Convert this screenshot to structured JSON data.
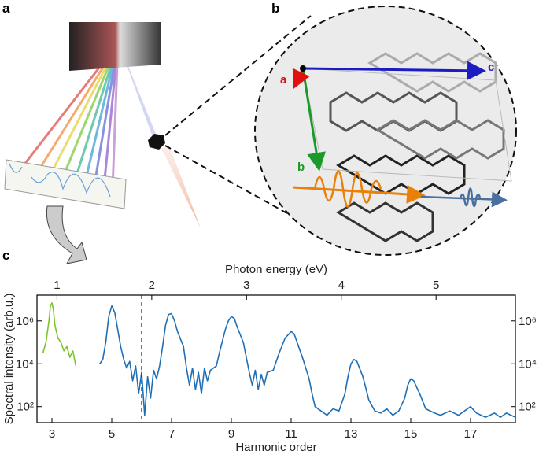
{
  "panel_labels": [
    "a",
    "b",
    "c"
  ],
  "crystal_axes": [
    "a",
    "b",
    "c"
  ],
  "chart_data": {
    "type": "line",
    "xlabel": "Harmonic order",
    "ylabel": "Spectral intensity (arb.u.)",
    "x2label": "Photon energy (eV)",
    "xlim": [
      2.5,
      18.5
    ],
    "xticks": [
      3,
      5,
      7,
      9,
      11,
      13,
      15,
      17
    ],
    "x2lim": [
      0.789,
      5.837
    ],
    "x2ticks": [
      1,
      2,
      3,
      4,
      5
    ],
    "ylim": [
      18,
      16000000
    ],
    "log_y": true,
    "yticks": [
      {
        "value": 100,
        "label": "10²"
      },
      {
        "value": 10000,
        "label": "10⁴"
      },
      {
        "value": 1000000,
        "label": "10⁶"
      }
    ],
    "vline": 6,
    "series": [
      {
        "color": "#7dc42a",
        "x": [
          2.7,
          2.8,
          2.9,
          2.95,
          3.0,
          3.05,
          3.1,
          3.2,
          3.3,
          3.4,
          3.5,
          3.6,
          3.7,
          3.8
        ],
        "values": [
          32000,
          100000,
          1000000,
          5000000,
          7000000,
          3200000,
          630000,
          160000,
          100000,
          40000,
          63000,
          20000,
          40000,
          7900
        ]
      },
      {
        "color": "#1f6fb5",
        "x": [
          4.6,
          4.7,
          4.8,
          4.9,
          5.0,
          5.1,
          5.2,
          5.3,
          5.4,
          5.5,
          5.6,
          5.7,
          5.8,
          5.9,
          6.0,
          6.1,
          6.2,
          6.3,
          6.4,
          6.5,
          6.6,
          6.7,
          6.8,
          6.9,
          7.0,
          7.1,
          7.2,
          7.4,
          7.5,
          7.6,
          7.7,
          7.8,
          7.9,
          8.0,
          8.1,
          8.2,
          8.3,
          8.5,
          8.6,
          8.8,
          8.9,
          9.0,
          9.1,
          9.2,
          9.4,
          9.6,
          9.7,
          9.8,
          9.9,
          10.0,
          10.1,
          10.2,
          10.4,
          10.6,
          10.8,
          11.0,
          11.1,
          11.2,
          11.4,
          11.6,
          11.7,
          11.8,
          12.0,
          12.2,
          12.4,
          12.6,
          12.8,
          12.9,
          13.0,
          13.1,
          13.2,
          13.4,
          13.6,
          13.8,
          14.0,
          14.2,
          14.4,
          14.6,
          14.8,
          14.9,
          15.0,
          15.1,
          15.3,
          15.5,
          15.8,
          16.0,
          16.3,
          16.6,
          16.8,
          17.0,
          17.2,
          17.5,
          17.8,
          18.0,
          18.2,
          18.5
        ],
        "values": [
          10000,
          16000,
          100000,
          1600000,
          5000000,
          2500000,
          400000,
          63000,
          16000,
          6300,
          13000,
          1600,
          7900,
          400,
          4000,
          40,
          2500,
          250,
          5000,
          2000,
          7900,
          63000,
          630000,
          2000000,
          2200000,
          1000000,
          320000,
          63000,
          6300,
          1000,
          6300,
          630,
          4000,
          400,
          6300,
          1600,
          5000,
          7900,
          32000,
          400000,
          1000000,
          1600000,
          1300000,
          500000,
          100000,
          4000,
          1000,
          5000,
          630,
          3200,
          1000,
          4000,
          5000,
          32000,
          160000,
          320000,
          250000,
          100000,
          16000,
          2000,
          400,
          100,
          63,
          40,
          79,
          63,
          400,
          2500,
          10000,
          16000,
          13000,
          2500,
          200,
          63,
          50,
          79,
          40,
          63,
          250,
          1000,
          2000,
          1600,
          400,
          79,
          50,
          40,
          63,
          40,
          63,
          100,
          50,
          32,
          50,
          32,
          50,
          32
        ]
      }
    ]
  }
}
